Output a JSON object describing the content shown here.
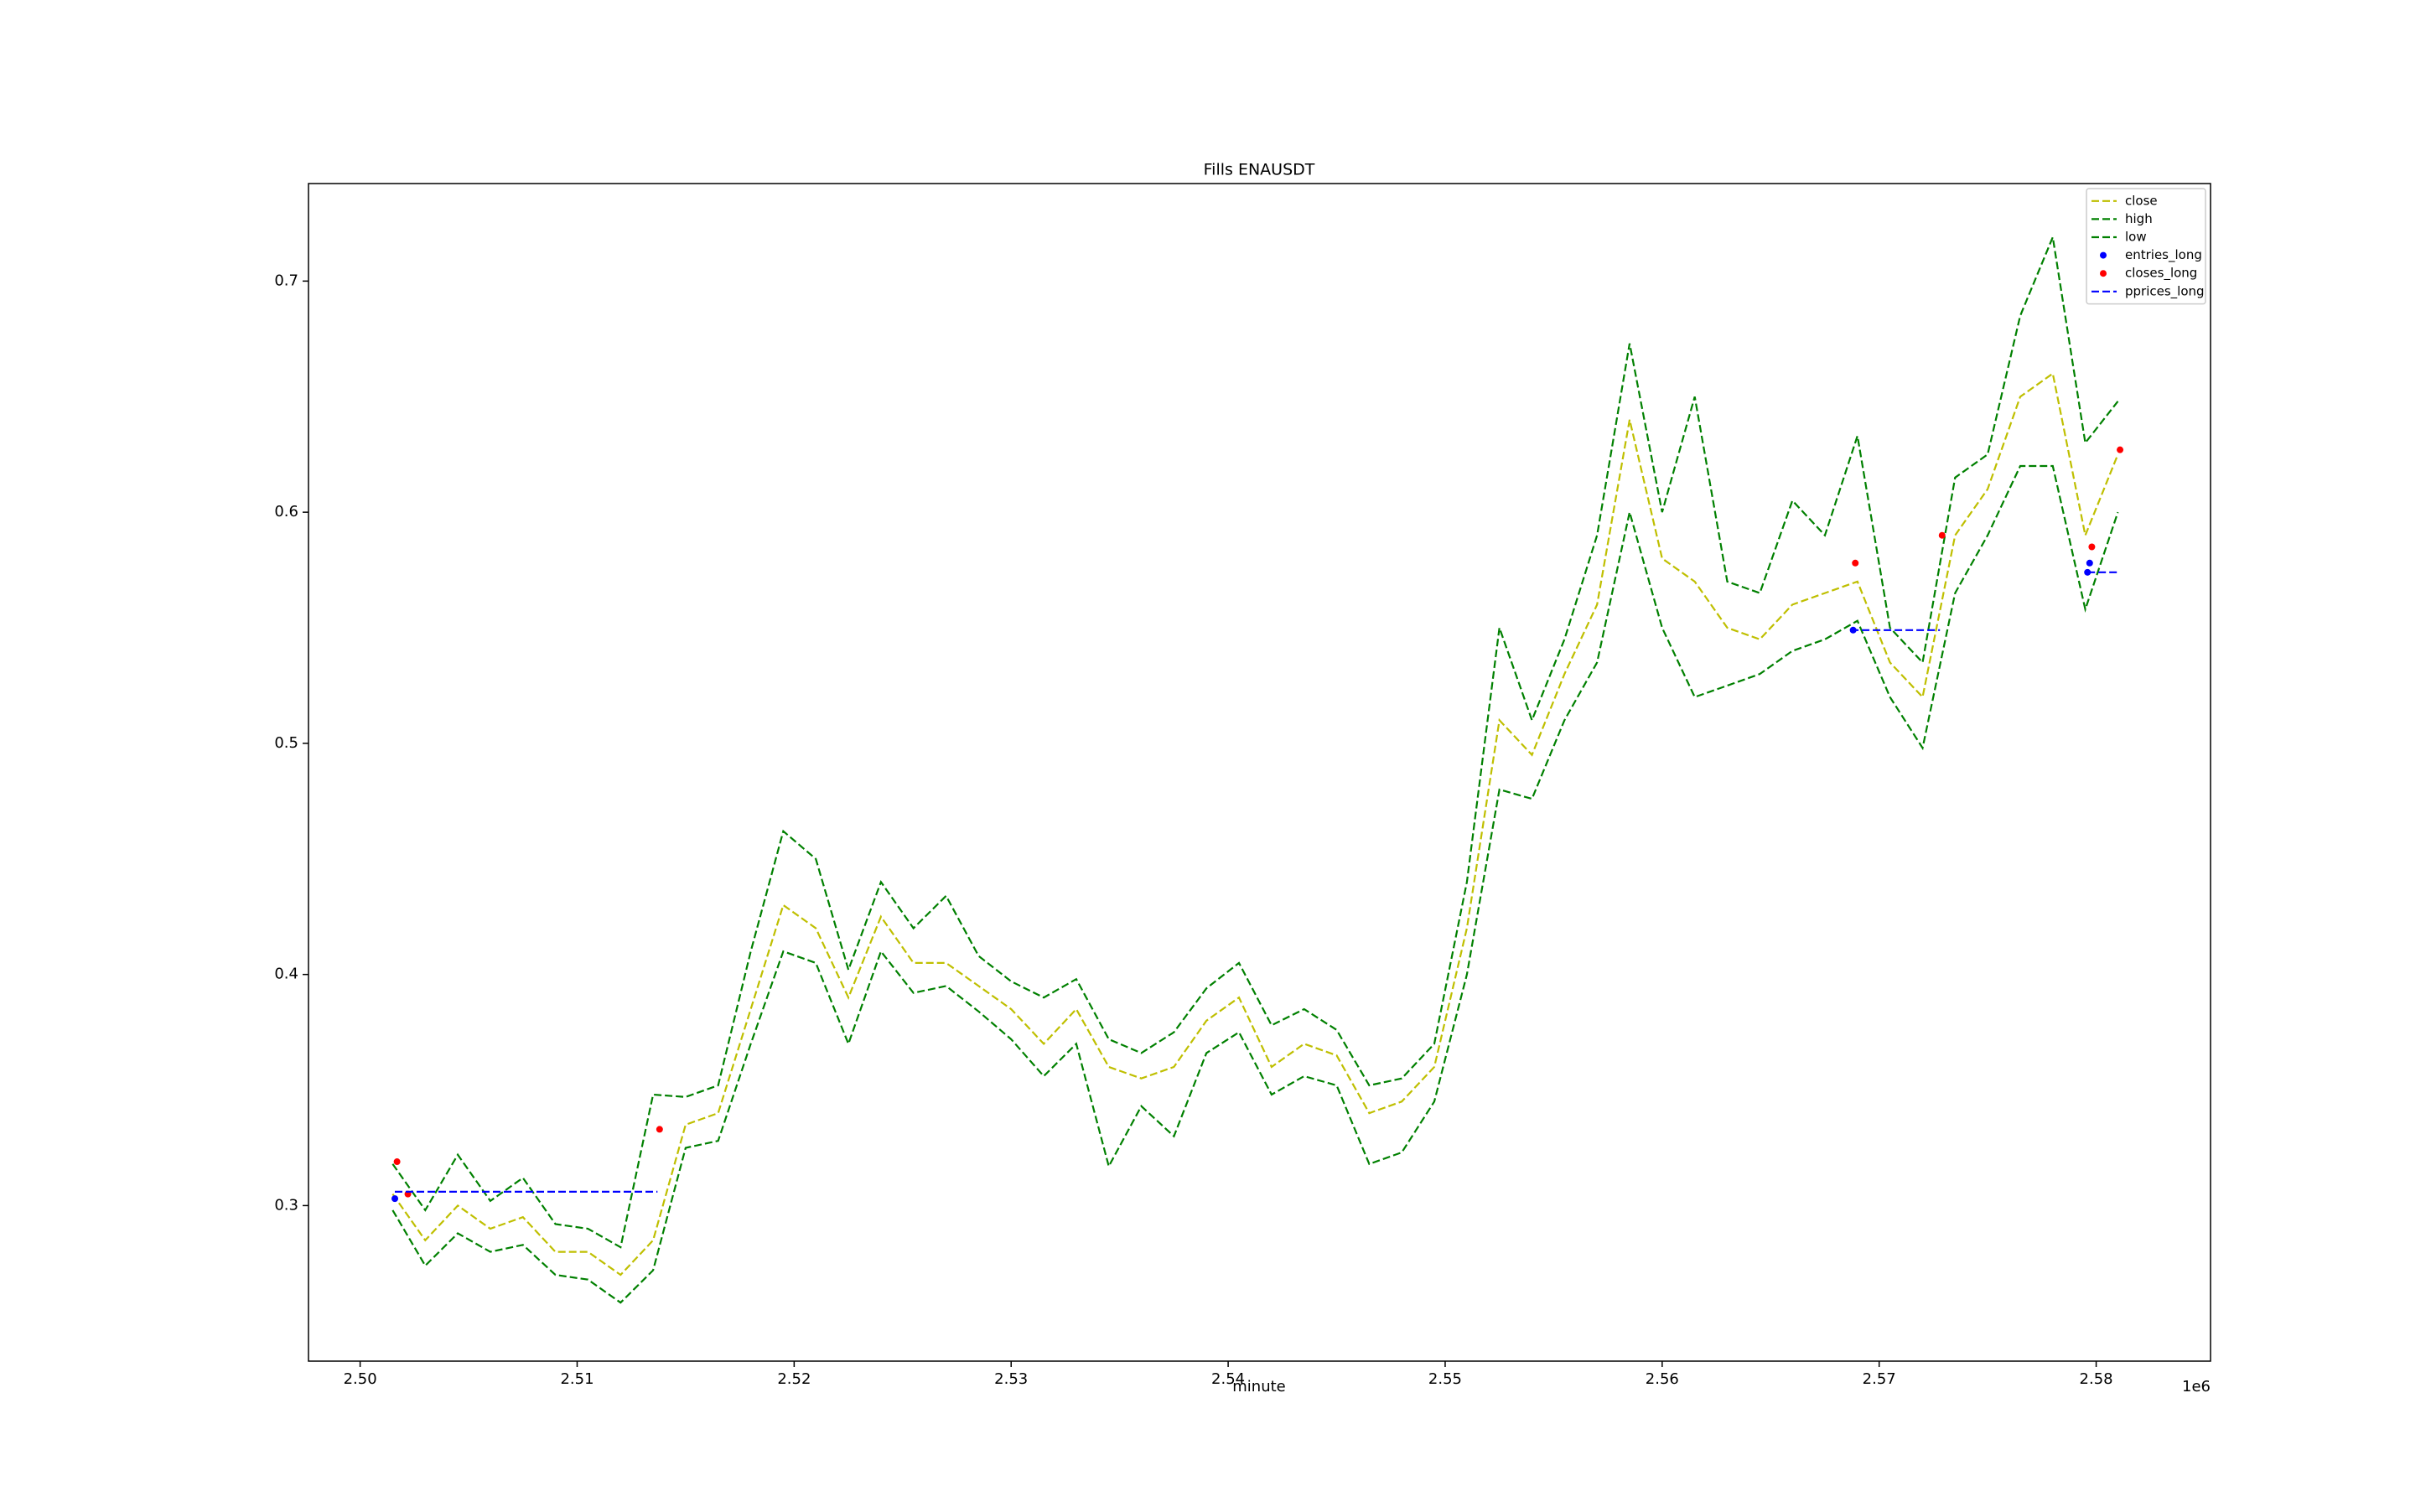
{
  "chart_data": {
    "type": "line",
    "title": "Fills ENAUSDT",
    "x_label": "minute",
    "offset_text": "1e6",
    "xlim": [
      2497620,
      2585270
    ],
    "ylim": [
      0.2327,
      0.7422
    ],
    "xticks": [
      {
        "value": 2500000,
        "label": "2.50"
      },
      {
        "value": 2510000,
        "label": "2.51"
      },
      {
        "value": 2520000,
        "label": "2.52"
      },
      {
        "value": 2530000,
        "label": "2.53"
      },
      {
        "value": 2540000,
        "label": "2.54"
      },
      {
        "value": 2550000,
        "label": "2.55"
      },
      {
        "value": 2560000,
        "label": "2.56"
      },
      {
        "value": 2570000,
        "label": "2.57"
      },
      {
        "value": 2580000,
        "label": "2.58"
      }
    ],
    "yticks": [
      0.3,
      0.4,
      0.5,
      0.6,
      0.7
    ],
    "legend": "upper right",
    "series": [
      {
        "name": "close",
        "style": "dashed",
        "color": "#bfbf00",
        "x": [
          2501500,
          2503000,
          2504500,
          2506000,
          2507500,
          2509000,
          2510500,
          2512000,
          2513500,
          2515000,
          2516500,
          2518000,
          2519500,
          2521000,
          2522500,
          2524000,
          2525500,
          2527000,
          2528500,
          2530000,
          2531500,
          2533000,
          2534500,
          2536000,
          2537500,
          2539000,
          2540500,
          2542000,
          2543500,
          2545000,
          2546500,
          2548000,
          2549500,
          2551000,
          2552500,
          2554000,
          2555500,
          2557000,
          2558500,
          2560000,
          2561500,
          2563000,
          2564500,
          2566000,
          2567500,
          2569000,
          2570500,
          2572000,
          2573500,
          2575000,
          2576500,
          2578000,
          2579500,
          2581000
        ],
        "values": [
          0.305,
          0.285,
          0.3,
          0.29,
          0.295,
          0.28,
          0.28,
          0.27,
          0.285,
          0.335,
          0.34,
          0.385,
          0.43,
          0.42,
          0.39,
          0.425,
          0.405,
          0.405,
          0.395,
          0.385,
          0.37,
          0.385,
          0.36,
          0.355,
          0.36,
          0.38,
          0.39,
          0.36,
          0.37,
          0.365,
          0.34,
          0.345,
          0.36,
          0.42,
          0.51,
          0.495,
          0.53,
          0.56,
          0.64,
          0.58,
          0.57,
          0.55,
          0.545,
          0.56,
          0.565,
          0.57,
          0.535,
          0.52,
          0.59,
          0.61,
          0.65,
          0.66,
          0.59,
          0.625
        ]
      },
      {
        "name": "high",
        "style": "dashed",
        "color": "#008000",
        "x": [
          2501500,
          2503000,
          2504500,
          2506000,
          2507500,
          2509000,
          2510500,
          2512000,
          2513500,
          2515000,
          2516500,
          2518000,
          2519500,
          2521000,
          2522500,
          2524000,
          2525500,
          2527000,
          2528500,
          2530000,
          2531500,
          2533000,
          2534500,
          2536000,
          2537500,
          2539000,
          2540500,
          2542000,
          2543500,
          2545000,
          2546500,
          2548000,
          2549500,
          2551000,
          2552500,
          2554000,
          2555500,
          2557000,
          2558500,
          2560000,
          2561500,
          2563000,
          2564500,
          2566000,
          2567500,
          2569000,
          2570500,
          2572000,
          2573500,
          2575000,
          2576500,
          2578000,
          2579500,
          2581000
        ],
        "values": [
          0.318,
          0.298,
          0.322,
          0.302,
          0.312,
          0.292,
          0.29,
          0.282,
          0.348,
          0.347,
          0.352,
          0.41,
          0.462,
          0.45,
          0.402,
          0.44,
          0.42,
          0.434,
          0.408,
          0.397,
          0.39,
          0.398,
          0.372,
          0.366,
          0.375,
          0.394,
          0.405,
          0.378,
          0.385,
          0.376,
          0.352,
          0.355,
          0.37,
          0.44,
          0.55,
          0.51,
          0.545,
          0.59,
          0.673,
          0.6,
          0.65,
          0.57,
          0.565,
          0.605,
          0.59,
          0.633,
          0.55,
          0.535,
          0.615,
          0.625,
          0.685,
          0.719,
          0.63,
          0.648
        ]
      },
      {
        "name": "low",
        "style": "dashed",
        "color": "#008000",
        "x": [
          2501500,
          2503000,
          2504500,
          2506000,
          2507500,
          2509000,
          2510500,
          2512000,
          2513500,
          2515000,
          2516500,
          2518000,
          2519500,
          2521000,
          2522500,
          2524000,
          2525500,
          2527000,
          2528500,
          2530000,
          2531500,
          2533000,
          2534500,
          2536000,
          2537500,
          2539000,
          2540500,
          2542000,
          2543500,
          2545000,
          2546500,
          2548000,
          2549500,
          2551000,
          2552500,
          2554000,
          2555500,
          2557000,
          2558500,
          2560000,
          2561500,
          2563000,
          2564500,
          2566000,
          2567500,
          2569000,
          2570500,
          2572000,
          2573500,
          2575000,
          2576500,
          2578000,
          2579500,
          2581000
        ],
        "values": [
          0.298,
          0.274,
          0.288,
          0.28,
          0.283,
          0.27,
          0.268,
          0.258,
          0.272,
          0.325,
          0.328,
          0.37,
          0.41,
          0.405,
          0.37,
          0.41,
          0.392,
          0.395,
          0.384,
          0.372,
          0.356,
          0.37,
          0.317,
          0.343,
          0.33,
          0.366,
          0.375,
          0.348,
          0.356,
          0.352,
          0.318,
          0.323,
          0.345,
          0.4,
          0.48,
          0.476,
          0.51,
          0.535,
          0.6,
          0.55,
          0.52,
          0.525,
          0.53,
          0.54,
          0.545,
          0.553,
          0.52,
          0.498,
          0.565,
          0.59,
          0.62,
          0.62,
          0.558,
          0.6
        ]
      },
      {
        "name": "entries_long",
        "style": "marker",
        "color": "#0000ff",
        "x": [
          2501600,
          2568800,
          2579600,
          2579700
        ],
        "values": [
          0.303,
          0.549,
          0.574,
          0.578
        ]
      },
      {
        "name": "closes_long",
        "style": "marker",
        "color": "#ff0000",
        "x": [
          2501700,
          2502200,
          2513800,
          2568900,
          2572900,
          2579800,
          2581100
        ],
        "values": [
          0.319,
          0.305,
          0.333,
          0.578,
          0.59,
          0.585,
          0.627
        ]
      },
      {
        "name": "pprices_long",
        "style": "dashed",
        "color": "#0000ff",
        "x": [
          2501600,
          2513700,
          2540000,
          2568700,
          2572800,
          2576000,
          2579600,
          2581000
        ],
        "values": [
          0.306,
          0.306,
          null,
          0.549,
          0.549,
          null,
          0.574,
          0.574
        ]
      }
    ]
  }
}
